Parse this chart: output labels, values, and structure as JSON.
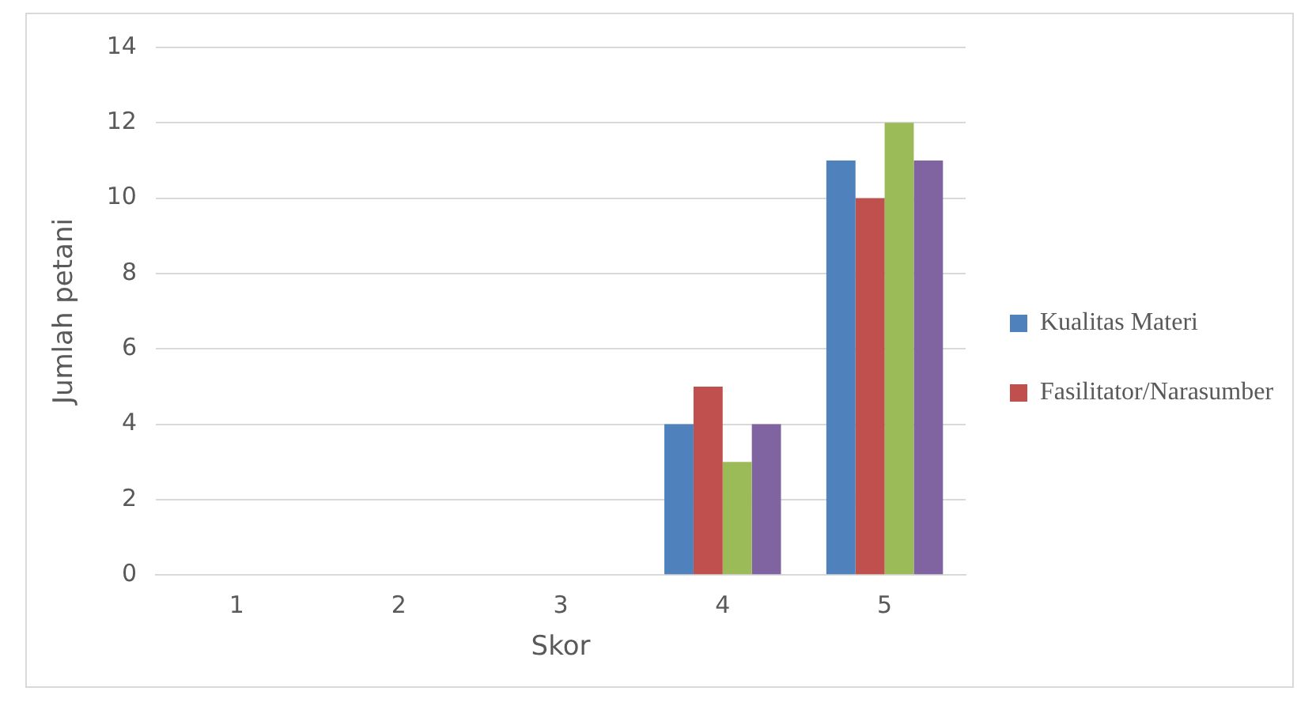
{
  "chart_data": {
    "type": "bar",
    "xlabel": "Skor",
    "ylabel": "Jumlah petani",
    "categories": [
      "1",
      "2",
      "3",
      "4",
      "5"
    ],
    "series": [
      {
        "name": "Kualitas Materi",
        "color": "#4f81bd",
        "values": [
          0,
          0,
          0,
          4,
          11
        ]
      },
      {
        "name": "Fasilitator/Narasumber",
        "color": "#c0504d",
        "values": [
          0,
          0,
          0,
          5,
          10
        ]
      },
      {
        "color": "#9bbb59",
        "values": [
          0,
          0,
          0,
          3,
          12
        ]
      },
      {
        "color": "#8064a2",
        "values": [
          0,
          0,
          0,
          4,
          11
        ]
      }
    ],
    "ylim": [
      0,
      14
    ],
    "yticks": [
      0,
      2,
      4,
      6,
      8,
      10,
      12,
      14
    ],
    "grid": "y",
    "legend": "right"
  }
}
